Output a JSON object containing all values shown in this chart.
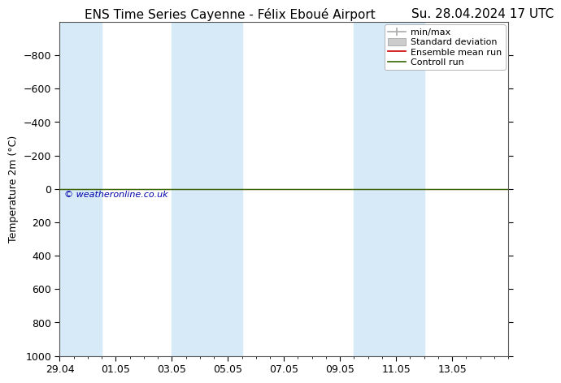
{
  "title_left": "ENS Time Series Cayenne - Félix Eboué Airport",
  "title_right": "Su. 28.04.2024 17 UTC",
  "ylabel": "Temperature 2m (°C)",
  "ylim_bottom": 1000,
  "ylim_top": -1000,
  "yticks": [
    -800,
    -600,
    -400,
    -200,
    0,
    200,
    400,
    600,
    800,
    1000
  ],
  "xlim_left": 0,
  "xlim_right": 16,
  "xtick_positions": [
    0,
    2,
    4,
    6,
    8,
    10,
    12,
    14
  ],
  "xtick_labels": [
    "29.04",
    "01.05",
    "03.05",
    "05.05",
    "07.05",
    "09.05",
    "11.05",
    "13.05"
  ],
  "blue_bands": [
    [
      0,
      1.5
    ],
    [
      4.0,
      5.0
    ],
    [
      5.0,
      6.5
    ],
    [
      10.5,
      11.5
    ],
    [
      11.5,
      13.0
    ]
  ],
  "blue_band_color": "#d6eaf8",
  "green_line_y": 0,
  "green_line_color": "#336600",
  "red_line_color": "#CC0000",
  "copyright_text": "© weatheronline.co.uk",
  "copyright_color": "#0000AA",
  "background_color": "#ffffff",
  "legend_labels": [
    "min/max",
    "Standard deviation",
    "Ensemble mean run",
    "Controll run"
  ],
  "legend_colors": [
    "#aaaaaa",
    "#cccccc",
    "#CC0000",
    "#336600"
  ],
  "title_fontsize": 11,
  "tick_fontsize": 9,
  "ylabel_fontsize": 9,
  "legend_fontsize": 8
}
